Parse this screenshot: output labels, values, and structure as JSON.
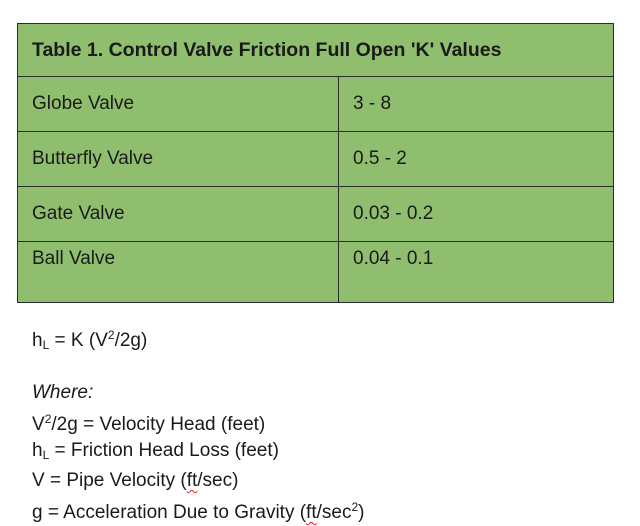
{
  "table": {
    "title": "Table 1. Control Valve Friction Full Open 'K' Values",
    "rows": [
      {
        "valve": "Globe Valve",
        "k": "3 - 8"
      },
      {
        "valve": "Butterfly Valve",
        "k": "0.5 - 2"
      },
      {
        "valve": "Gate Valve",
        "k": "0.03 - 0.2"
      },
      {
        "valve": "Ball Valve",
        "k": "0.04 - 0.1"
      }
    ]
  },
  "formula": {
    "h": "h",
    "L": "L",
    "eq_mid": " = K (V",
    "sq": "2",
    "eq_end": "/2g)"
  },
  "legend": {
    "where": "Where:",
    "line1": {
      "pre": "V",
      "sup": "2",
      "post": "/2g = Velocity Head (feet)"
    },
    "line2": {
      "pre": "h",
      "sub": "L",
      "post": " = Friction Head Loss (feet)"
    },
    "line3": {
      "pre": "V = Pipe Velocity (",
      "unit": "ft",
      "post": "/sec)"
    },
    "line4": {
      "pre": "g = Acceleration Due to Gravity (",
      "unit": "ft",
      "mid": "/sec",
      "sup": "2",
      "post": ")"
    }
  }
}
